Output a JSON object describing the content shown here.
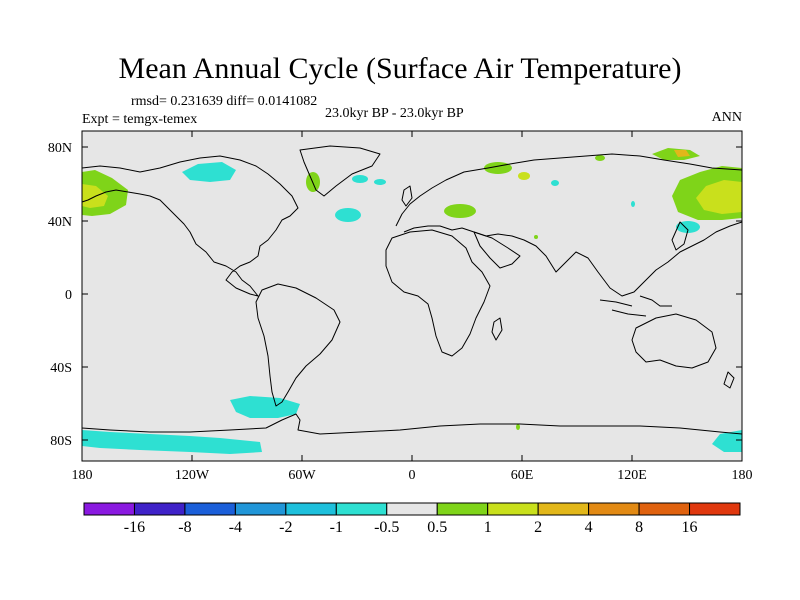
{
  "title": "Mean Annual Cycle (Surface Air Temperature)",
  "stats_line": "rmsd= 0.231639 diff= 0.0141082",
  "expt_line": "Expt = temgx-temex",
  "period_line": "23.0kyr BP - 23.0kyr BP",
  "season": "ANN",
  "lat_ticks": [
    "80N",
    "40N",
    "0",
    "40S",
    "80S"
  ],
  "lon_ticks": [
    "180",
    "120W",
    "60W",
    "0",
    "60E",
    "120E",
    "180"
  ],
  "colorbar": {
    "colors": [
      "#8a19e0",
      "#3f22c8",
      "#1b5fd9",
      "#2196d8",
      "#1ec0dc",
      "#2ee0d2",
      "#e6e6e6",
      "#7fd419",
      "#c9e01c",
      "#e2b71a",
      "#e28a14",
      "#e0620f",
      "#e0380e"
    ],
    "labels": [
      "-16",
      "-8",
      "-4",
      "-2",
      "-1",
      "-0.5",
      "0.5",
      "1",
      "2",
      "4",
      "8",
      "16"
    ]
  },
  "colors": {
    "ocean_bg": "#e6e6e6",
    "coast": "#000000"
  }
}
